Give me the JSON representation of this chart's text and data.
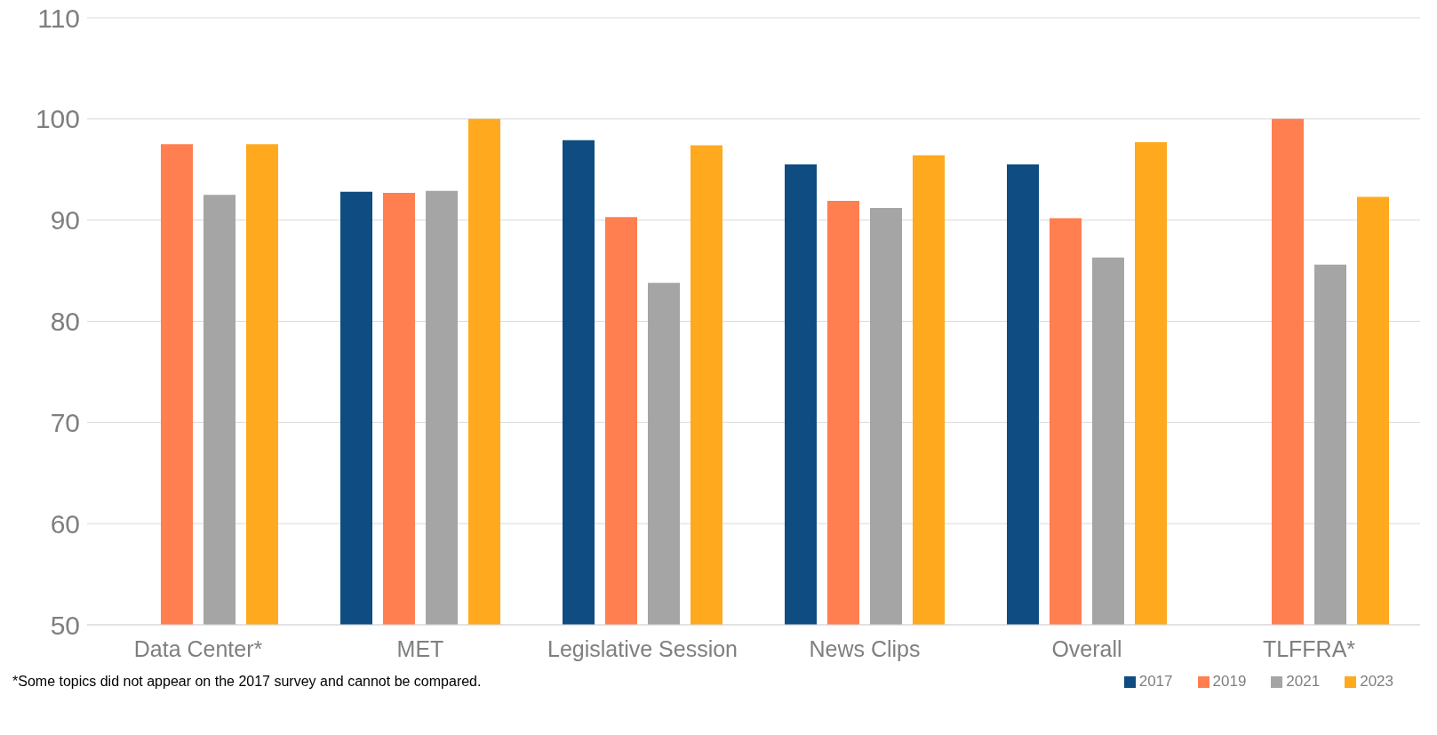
{
  "chart_data": {
    "type": "bar",
    "categories": [
      "Data Center*",
      "MET",
      "Legislative Session",
      "News Clips",
      "Overall",
      "TLFFRA*"
    ],
    "series": [
      {
        "name": "2017",
        "color": "#0f4c81",
        "values": [
          null,
          92.8,
          97.9,
          95.5,
          95.5,
          null
        ]
      },
      {
        "name": "2019",
        "color": "#ff7f50",
        "values": [
          97.5,
          92.7,
          90.3,
          91.9,
          90.2,
          100
        ]
      },
      {
        "name": "2021",
        "color": "#a5a5a5",
        "values": [
          92.5,
          92.9,
          83.8,
          91.2,
          86.3,
          85.6
        ]
      },
      {
        "name": "2023",
        "color": "#ffa91e",
        "values": [
          97.5,
          100,
          97.4,
          96.4,
          97.7,
          92.3
        ]
      }
    ],
    "ylim": [
      50,
      110
    ],
    "yticks": [
      50,
      60,
      70,
      80,
      90,
      100,
      110
    ],
    "grid": "y",
    "legend": "bottom right",
    "annotations": [
      "*Some topics did not appear on the 2017 survey and cannot be compared."
    ]
  }
}
